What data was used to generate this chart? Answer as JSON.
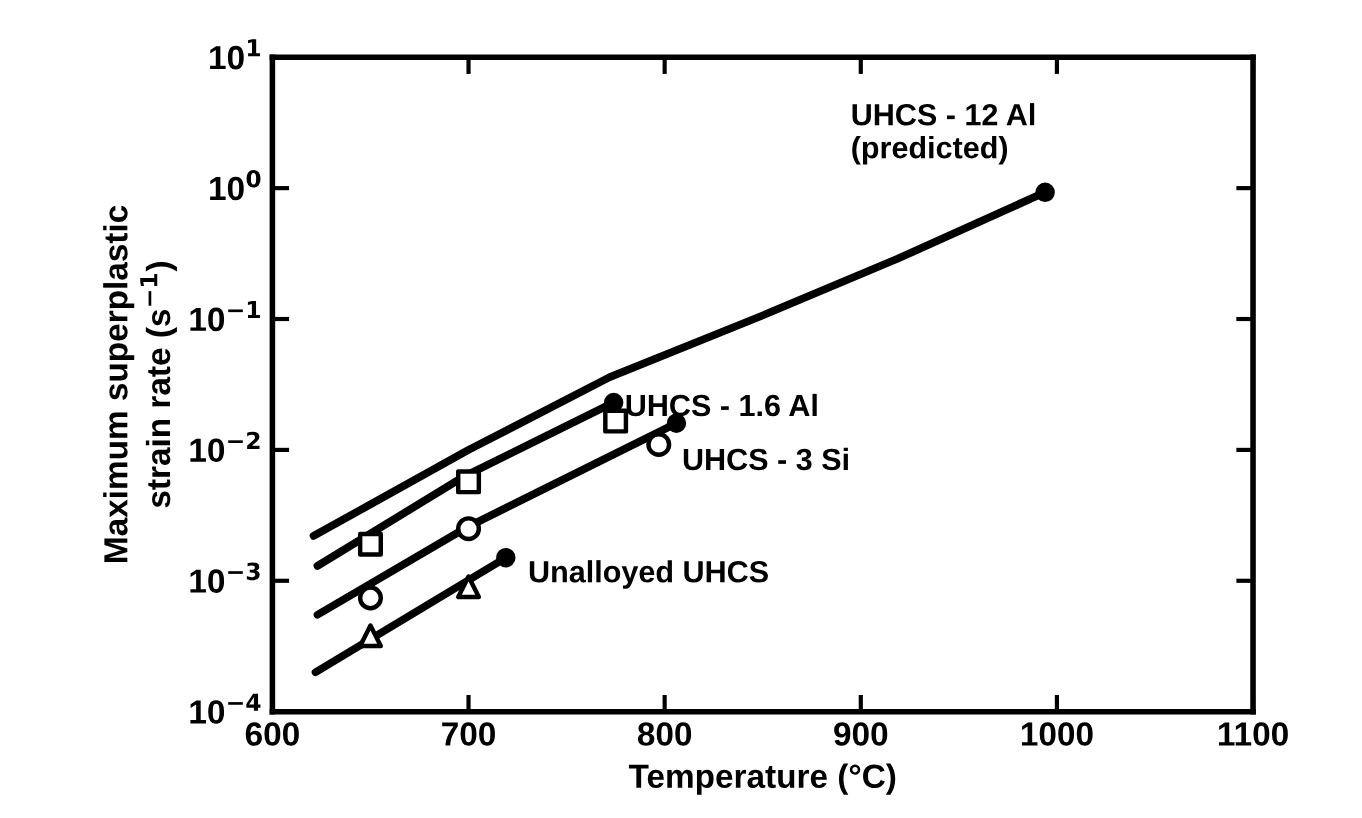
{
  "chart_data": {
    "type": "line",
    "xlabel": "Temperature (°C)",
    "ylabel": "Maximum superplastic\nstrain rate (s$^{−1}$)",
    "xlim": [
      600,
      1100
    ],
    "xticks": [
      600,
      700,
      800,
      900,
      1000,
      1100
    ],
    "ylim": [
      0.0001,
      10
    ],
    "log": true,
    "yticks": [
      {
        "value": 0.0001,
        "label": "10$^{−4}$"
      },
      {
        "value": 0.001,
        "label": "10$^{−3}$"
      },
      {
        "value": 0.01,
        "label": "10$^{−2}$"
      },
      {
        "value": 0.1,
        "label": "10$^{−1}$"
      },
      {
        "value": 1,
        "label": "10$^{0}$"
      },
      {
        "value": 10,
        "label": "10$^{1}$"
      }
    ],
    "grid": false,
    "legend": false,
    "series": [
      {
        "color": "#000000",
        "x": [
          621,
          700,
          772,
          849,
          919,
          994
        ],
        "values": [
          0.0022,
          0.01,
          0.036,
          0.105,
          0.29,
          0.93
        ]
      },
      {
        "color": "#000000",
        "x": [
          623,
          698,
          774
        ],
        "values": [
          0.0013,
          0.0063,
          0.023
        ]
      },
      {
        "color": "#000000",
        "x": [
          623,
          700,
          806
        ],
        "values": [
          0.00055,
          0.0026,
          0.016
        ]
      },
      {
        "color": "#000000",
        "x": [
          622,
          719
        ],
        "values": [
          0.0002,
          0.0015
        ]
      },
      {
        "type": "scatter",
        "color": "#000000",
        "marker": "square",
        "x": [
          650,
          700,
          775
        ],
        "values": [
          0.0019,
          0.0057,
          0.0166
        ]
      },
      {
        "type": "scatter",
        "color": "#000000",
        "marker": "circle",
        "x": [
          650,
          700,
          797
        ],
        "values": [
          0.00074,
          0.0025,
          0.011
        ]
      },
      {
        "type": "scatter",
        "color": "#000000",
        "marker": "triangle",
        "x": [
          650,
          700
        ],
        "values": [
          0.00038,
          0.0009
        ]
      }
    ],
    "annotations": [
      {
        "text": "UHCS - 12 Al\n(predicted)",
        "x": 994,
        "y": 0.93
      },
      {
        "text": "UHCS - 1.6 Al",
        "x": 774,
        "y": 0.023
      },
      {
        "text": "UHCS - 3 Si",
        "x": 806,
        "y": 0.016
      },
      {
        "text": "Unalloyed UHCS",
        "x": 719,
        "y": 0.0015
      }
    ]
  }
}
